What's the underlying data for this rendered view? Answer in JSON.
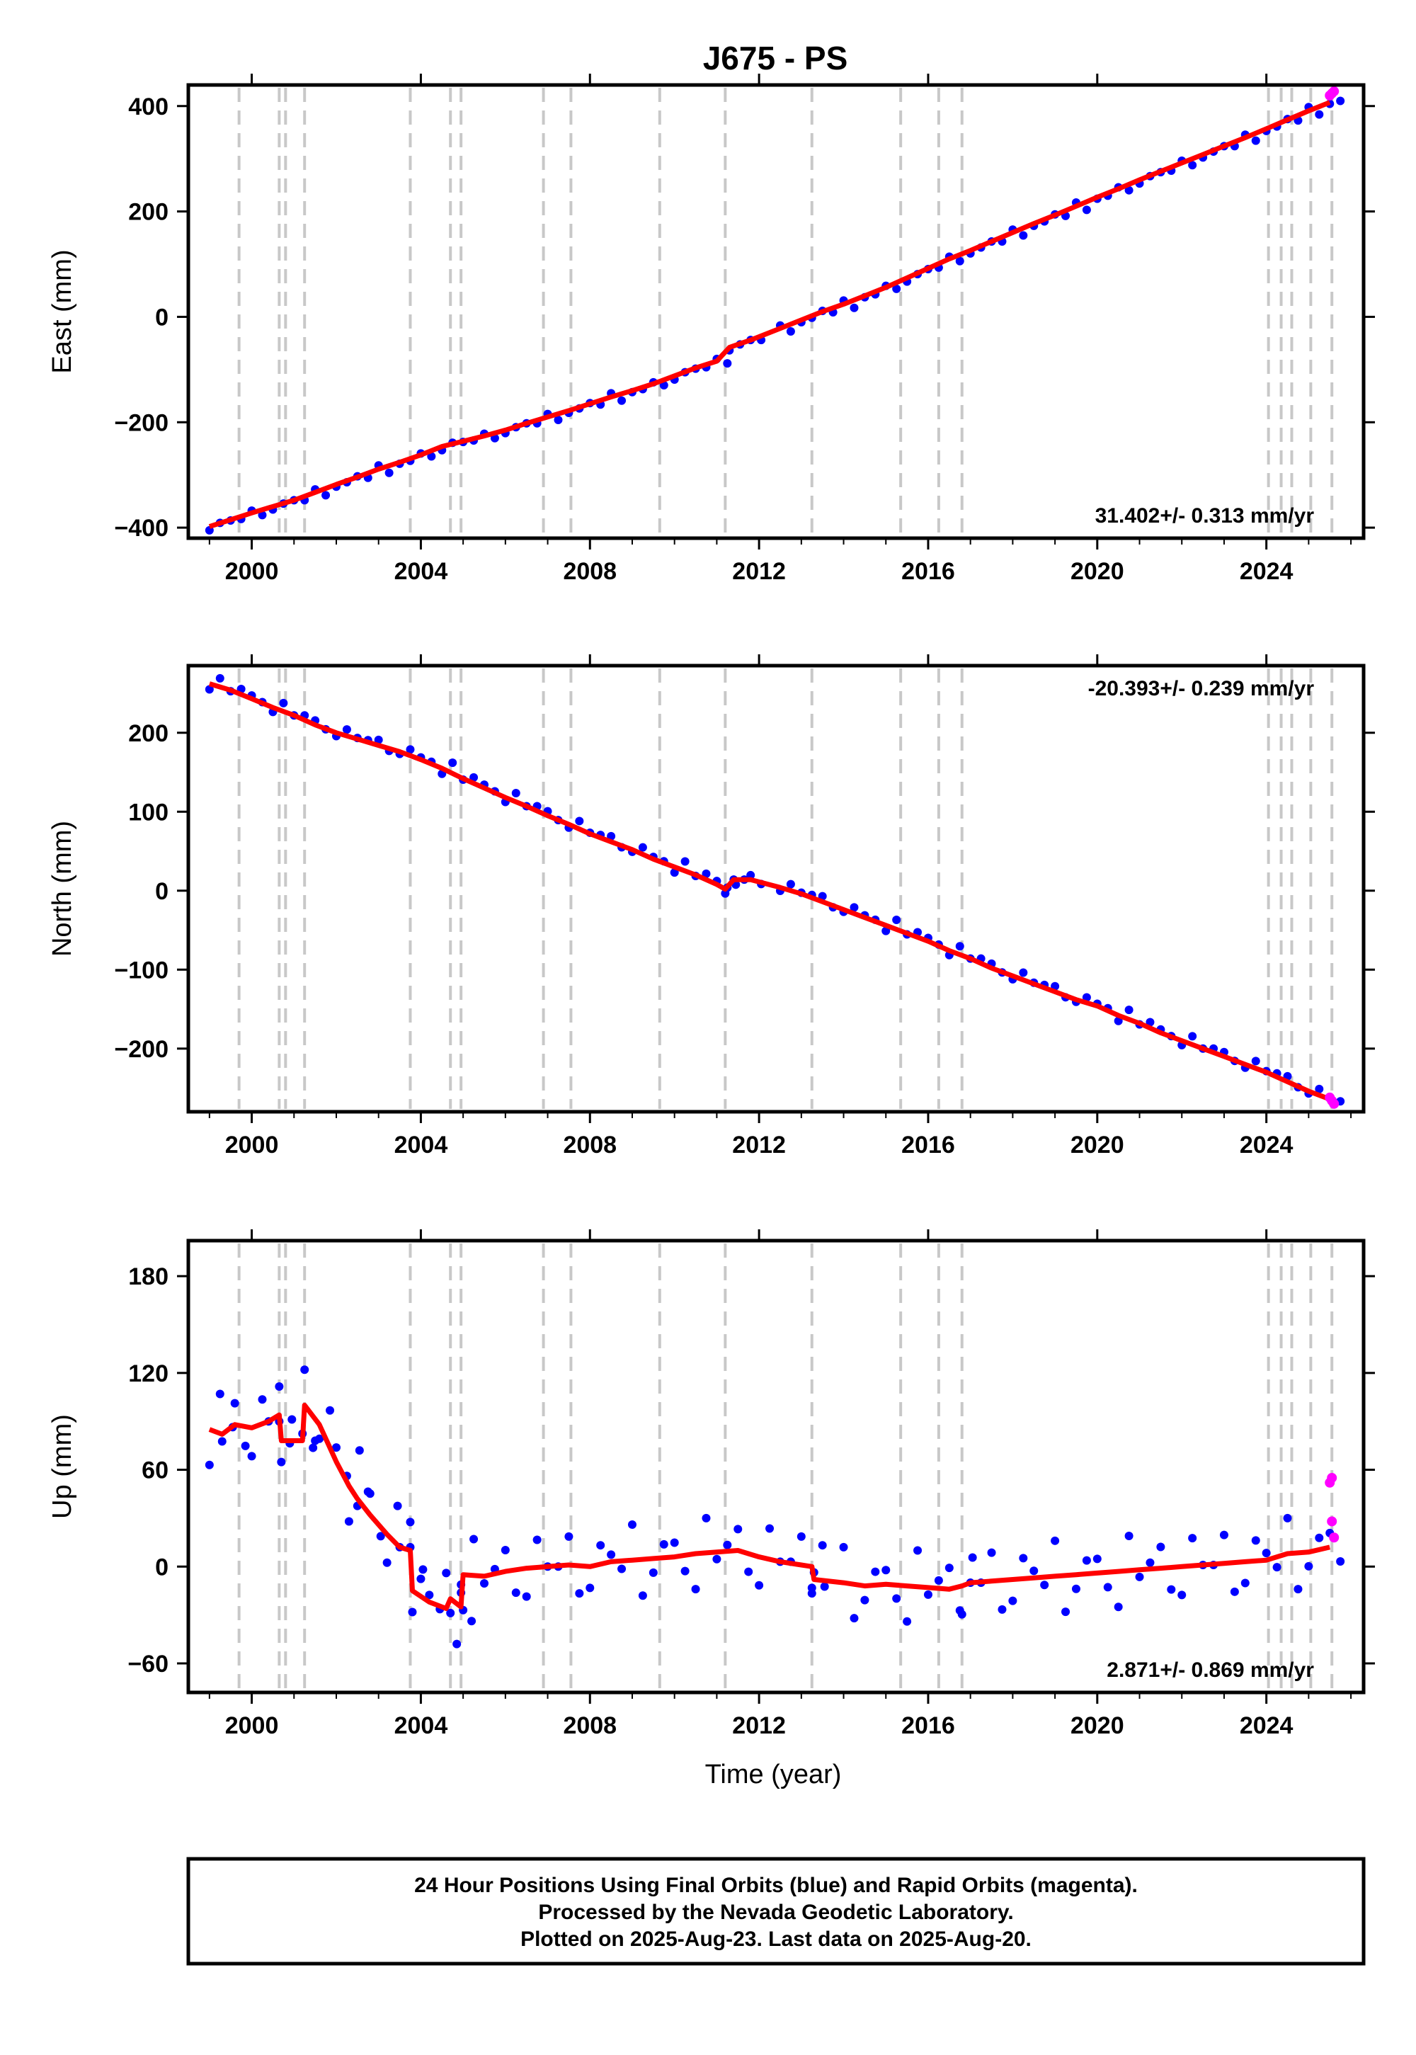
{
  "title": "J675 - PS",
  "xlabel": "Time (year)",
  "footer": {
    "line1": "24 Hour Positions Using Final Orbits (blue) and Rapid Orbits (magenta).",
    "line2": "Processed by the Nevada Geodetic Laboratory.",
    "line3": "Plotted on 2025-Aug-23. Last data on 2025-Aug-20."
  },
  "colors": {
    "final": "#0000ff",
    "rapid": "#ff00ff",
    "model": "#ff0000",
    "steps": "#c8c8c8"
  },
  "chart_data": [
    {
      "type": "scatter",
      "ylabel": "East (mm)",
      "rate_label": "31.402+/- 0.313 mm/yr",
      "xlim": [
        1998.5,
        2026.3
      ],
      "ylim": [
        -420,
        440
      ],
      "xticks": [
        2000,
        2004,
        2008,
        2012,
        2016,
        2020,
        2024
      ],
      "yticks": [
        -400,
        -200,
        0,
        200,
        400
      ],
      "step_lines": [
        1999.7,
        2000.65,
        2000.8,
        2001.25,
        2003.75,
        2004.7,
        2004.95,
        2006.9,
        2007.55,
        2009.65,
        2011.2,
        2013.25,
        2015.35,
        2016.25,
        2016.8,
        2024.05,
        2024.35,
        2024.6,
        2025.05,
        2025.55
      ],
      "series": [
        {
          "name": "Final Orbits",
          "values": [
            [
              1999.0,
              -398
            ],
            [
              1999.5,
              -385
            ],
            [
              2000.0,
              -372
            ],
            [
              2000.5,
              -360
            ],
            [
              2001.0,
              -348
            ],
            [
              2001.5,
              -333
            ],
            [
              2002.0,
              -318
            ],
            [
              2002.5,
              -304
            ],
            [
              2003.0,
              -289
            ],
            [
              2003.5,
              -276
            ],
            [
              2004.0,
              -262
            ],
            [
              2004.5,
              -246
            ],
            [
              2005.0,
              -236
            ],
            [
              2005.5,
              -226
            ],
            [
              2006.0,
              -215
            ],
            [
              2006.5,
              -202
            ],
            [
              2007.0,
              -190
            ],
            [
              2007.5,
              -178
            ],
            [
              2008.0,
              -165
            ],
            [
              2008.5,
              -152
            ],
            [
              2009.0,
              -140
            ],
            [
              2009.5,
              -127
            ],
            [
              2010.0,
              -112
            ],
            [
              2010.5,
              -97
            ],
            [
              2011.0,
              -84
            ],
            [
              2011.3,
              -58
            ],
            [
              2011.8,
              -44
            ],
            [
              2012.5,
              -22
            ],
            [
              2013.0,
              -6
            ],
            [
              2013.5,
              10
            ],
            [
              2014.0,
              24
            ],
            [
              2014.5,
              40
            ],
            [
              2015.0,
              56
            ],
            [
              2015.5,
              74
            ],
            [
              2016.0,
              92
            ],
            [
              2016.5,
              110
            ],
            [
              2017.0,
              126
            ],
            [
              2017.5,
              143
            ],
            [
              2018.0,
              160
            ],
            [
              2018.5,
              177
            ],
            [
              2019.0,
              193
            ],
            [
              2019.5,
              210
            ],
            [
              2020.0,
              227
            ],
            [
              2020.5,
              243
            ],
            [
              2021.0,
              260
            ],
            [
              2021.5,
              276
            ],
            [
              2022.0,
              292
            ],
            [
              2022.5,
              308
            ],
            [
              2023.0,
              324
            ],
            [
              2023.5,
              340
            ],
            [
              2024.0,
              357
            ],
            [
              2024.5,
              374
            ],
            [
              2025.0,
              391
            ],
            [
              2025.5,
              407
            ]
          ]
        },
        {
          "name": "Rapid Orbits",
          "values": [
            [
              2025.5,
              420
            ],
            [
              2025.55,
              424
            ],
            [
              2025.6,
              428
            ]
          ]
        }
      ]
    },
    {
      "type": "scatter",
      "ylabel": "North (mm)",
      "rate_label": "-20.393+/- 0.239 mm/yr",
      "xlim": [
        1998.5,
        2026.3
      ],
      "ylim": [
        -280,
        285
      ],
      "xticks": [
        2000,
        2004,
        2008,
        2012,
        2016,
        2020,
        2024
      ],
      "yticks": [
        -200,
        -100,
        0,
        100,
        200
      ],
      "step_lines": [
        1999.7,
        2000.65,
        2000.8,
        2001.25,
        2003.75,
        2004.7,
        2004.95,
        2006.9,
        2007.55,
        2009.65,
        2011.2,
        2013.25,
        2015.35,
        2016.25,
        2016.8,
        2024.05,
        2024.35,
        2024.6,
        2025.05,
        2025.55
      ],
      "series": [
        {
          "name": "Final Orbits",
          "values": [
            [
              1999.0,
              262
            ],
            [
              1999.5,
              254
            ],
            [
              2000.0,
              243
            ],
            [
              2000.5,
              232
            ],
            [
              2001.0,
              222
            ],
            [
              2001.5,
              210
            ],
            [
              2002.0,
              200
            ],
            [
              2002.5,
              192
            ],
            [
              2003.0,
              184
            ],
            [
              2003.5,
              176
            ],
            [
              2004.0,
              166
            ],
            [
              2004.5,
              155
            ],
            [
              2005.0,
              142
            ],
            [
              2005.5,
              130
            ],
            [
              2006.0,
              118
            ],
            [
              2006.5,
              107
            ],
            [
              2007.0,
              95
            ],
            [
              2007.5,
              84
            ],
            [
              2008.0,
              72
            ],
            [
              2008.5,
              62
            ],
            [
              2009.0,
              52
            ],
            [
              2009.5,
              40
            ],
            [
              2010.0,
              30
            ],
            [
              2010.5,
              20
            ],
            [
              2011.0,
              8
            ],
            [
              2011.2,
              2
            ],
            [
              2011.4,
              14
            ],
            [
              2011.8,
              14
            ],
            [
              2012.5,
              4
            ],
            [
              2013.0,
              -4
            ],
            [
              2013.5,
              -14
            ],
            [
              2014.0,
              -24
            ],
            [
              2014.5,
              -34
            ],
            [
              2015.0,
              -44
            ],
            [
              2015.5,
              -54
            ],
            [
              2016.0,
              -64
            ],
            [
              2016.5,
              -76
            ],
            [
              2017.0,
              -86
            ],
            [
              2017.5,
              -98
            ],
            [
              2018.0,
              -108
            ],
            [
              2018.5,
              -118
            ],
            [
              2019.0,
              -128
            ],
            [
              2019.5,
              -138
            ],
            [
              2020.0,
              -146
            ],
            [
              2020.5,
              -158
            ],
            [
              2021.0,
              -168
            ],
            [
              2021.5,
              -180
            ],
            [
              2022.0,
              -190
            ],
            [
              2022.5,
              -200
            ],
            [
              2023.0,
              -210
            ],
            [
              2023.5,
              -220
            ],
            [
              2024.0,
              -230
            ],
            [
              2024.5,
              -242
            ],
            [
              2025.0,
              -254
            ],
            [
              2025.5,
              -264
            ]
          ]
        },
        {
          "name": "Rapid Orbits",
          "values": [
            [
              2025.5,
              -262
            ],
            [
              2025.55,
              -266
            ],
            [
              2025.6,
              -270
            ]
          ]
        }
      ]
    },
    {
      "type": "scatter",
      "ylabel": "Up (mm)",
      "rate_label": "2.871+/- 0.869 mm/yr",
      "xlim": [
        1998.5,
        2026.3
      ],
      "ylim": [
        -78,
        202
      ],
      "xticks": [
        2000,
        2004,
        2008,
        2012,
        2016,
        2020,
        2024
      ],
      "yticks": [
        -60,
        0,
        60,
        120,
        180
      ],
      "step_lines": [
        1999.7,
        2000.65,
        2000.8,
        2001.25,
        2003.75,
        2004.7,
        2004.95,
        2006.9,
        2007.55,
        2009.65,
        2011.2,
        2013.25,
        2015.35,
        2016.25,
        2016.8,
        2024.05,
        2024.35,
        2024.6,
        2025.05,
        2025.55
      ],
      "series": [
        {
          "name": "Final Orbits",
          "values": [
            [
              1999.0,
              85
            ],
            [
              1999.3,
              82
            ],
            [
              1999.6,
              88
            ],
            [
              2000.0,
              86
            ],
            [
              2000.4,
              90
            ],
            [
              2000.65,
              94
            ],
            [
              2000.7,
              78
            ],
            [
              2001.2,
              78
            ],
            [
              2001.25,
              100
            ],
            [
              2001.6,
              88
            ],
            [
              2002.0,
              65
            ],
            [
              2002.3,
              50
            ],
            [
              2002.5,
              42
            ],
            [
              2002.8,
              32
            ],
            [
              2003.2,
              20
            ],
            [
              2003.5,
              12
            ],
            [
              2003.75,
              10
            ],
            [
              2003.8,
              -15
            ],
            [
              2004.2,
              -22
            ],
            [
              2004.6,
              -26
            ],
            [
              2004.7,
              -20
            ],
            [
              2004.95,
              -25
            ],
            [
              2005.0,
              -5
            ],
            [
              2005.5,
              -6
            ],
            [
              2006.0,
              -3
            ],
            [
              2006.5,
              -1
            ],
            [
              2007.0,
              0
            ],
            [
              2007.5,
              1
            ],
            [
              2008.0,
              0
            ],
            [
              2008.5,
              3
            ],
            [
              2009.0,
              4
            ],
            [
              2009.5,
              5
            ],
            [
              2010.0,
              6
            ],
            [
              2010.5,
              8
            ],
            [
              2011.0,
              9
            ],
            [
              2011.5,
              10
            ],
            [
              2012.0,
              6
            ],
            [
              2012.5,
              3
            ],
            [
              2013.0,
              1
            ],
            [
              2013.25,
              0
            ],
            [
              2013.3,
              -8
            ],
            [
              2014.0,
              -10
            ],
            [
              2014.5,
              -12
            ],
            [
              2015.0,
              -11
            ],
            [
              2015.5,
              -12
            ],
            [
              2016.0,
              -13
            ],
            [
              2016.5,
              -14
            ],
            [
              2016.8,
              -12
            ],
            [
              2017.0,
              -10
            ],
            [
              2017.5,
              -9
            ],
            [
              2018.0,
              -8
            ],
            [
              2018.5,
              -7
            ],
            [
              2019.0,
              -6
            ],
            [
              2019.5,
              -5
            ],
            [
              2020.0,
              -4
            ],
            [
              2020.5,
              -3
            ],
            [
              2021.0,
              -2
            ],
            [
              2021.5,
              -1
            ],
            [
              2022.0,
              0
            ],
            [
              2022.5,
              1
            ],
            [
              2023.0,
              2
            ],
            [
              2023.5,
              3
            ],
            [
              2024.0,
              4
            ],
            [
              2024.5,
              8
            ],
            [
              2025.0,
              9
            ],
            [
              2025.5,
              12
            ]
          ]
        },
        {
          "name": "Rapid Orbits",
          "values": [
            [
              2025.5,
              52
            ],
            [
              2025.55,
              55
            ],
            [
              2025.55,
              28
            ],
            [
              2025.6,
              18
            ]
          ]
        }
      ]
    }
  ]
}
